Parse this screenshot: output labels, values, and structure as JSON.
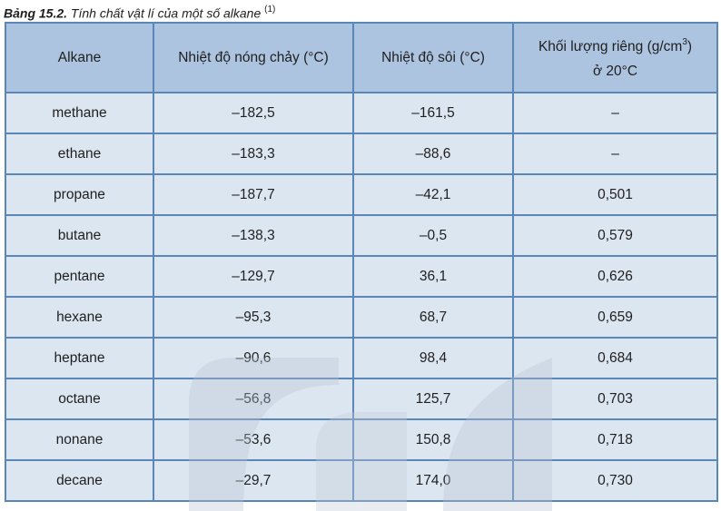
{
  "caption": {
    "label": "Bảng 15.2.",
    "text": " Tính chất vật lí của một số alkane ",
    "note": "(1)"
  },
  "table": {
    "headers": {
      "col1": "Alkane",
      "col2": "Nhiệt độ nóng chảy (°C)",
      "col3": "Nhiệt độ sôi (°C)",
      "col4_line1": "Khối lượng riêng (g/cm",
      "col4_sup": "3",
      "col4_close": ")",
      "col4_line2": "ở 20°C"
    },
    "rows": [
      {
        "alkane": "methane",
        "melting_point": "–182,5",
        "boiling_point": "–161,5",
        "density": "–"
      },
      {
        "alkane": "ethane",
        "melting_point": "–183,3",
        "boiling_point": "–88,6",
        "density": "–"
      },
      {
        "alkane": "propane",
        "melting_point": "–187,7",
        "boiling_point": "–42,1",
        "density": "0,501"
      },
      {
        "alkane": "butane",
        "melting_point": "–138,3",
        "boiling_point": "–0,5",
        "density": "0,579"
      },
      {
        "alkane": "pentane",
        "melting_point": "–129,7",
        "boiling_point": "36,1",
        "density": "0,626"
      },
      {
        "alkane": "hexane",
        "melting_point": "–95,3",
        "boiling_point": "68,7",
        "density": "0,659"
      },
      {
        "alkane": "heptane",
        "melting_point": "–90,6",
        "boiling_point": "98,4",
        "density": "0,684"
      },
      {
        "alkane": "octane",
        "melting_point": "–56,8",
        "boiling_point": "125,7",
        "density": "0,703"
      },
      {
        "alkane": "nonane",
        "melting_point": "–53,6",
        "boiling_point": "150,8",
        "density": "0,718"
      },
      {
        "alkane": "decane",
        "melting_point": "–29,7",
        "boiling_point": "174,0",
        "density": "0,730"
      }
    ]
  },
  "watermark": {
    "icon": "publisher-logo-icon",
    "color": "#c9d3de"
  }
}
